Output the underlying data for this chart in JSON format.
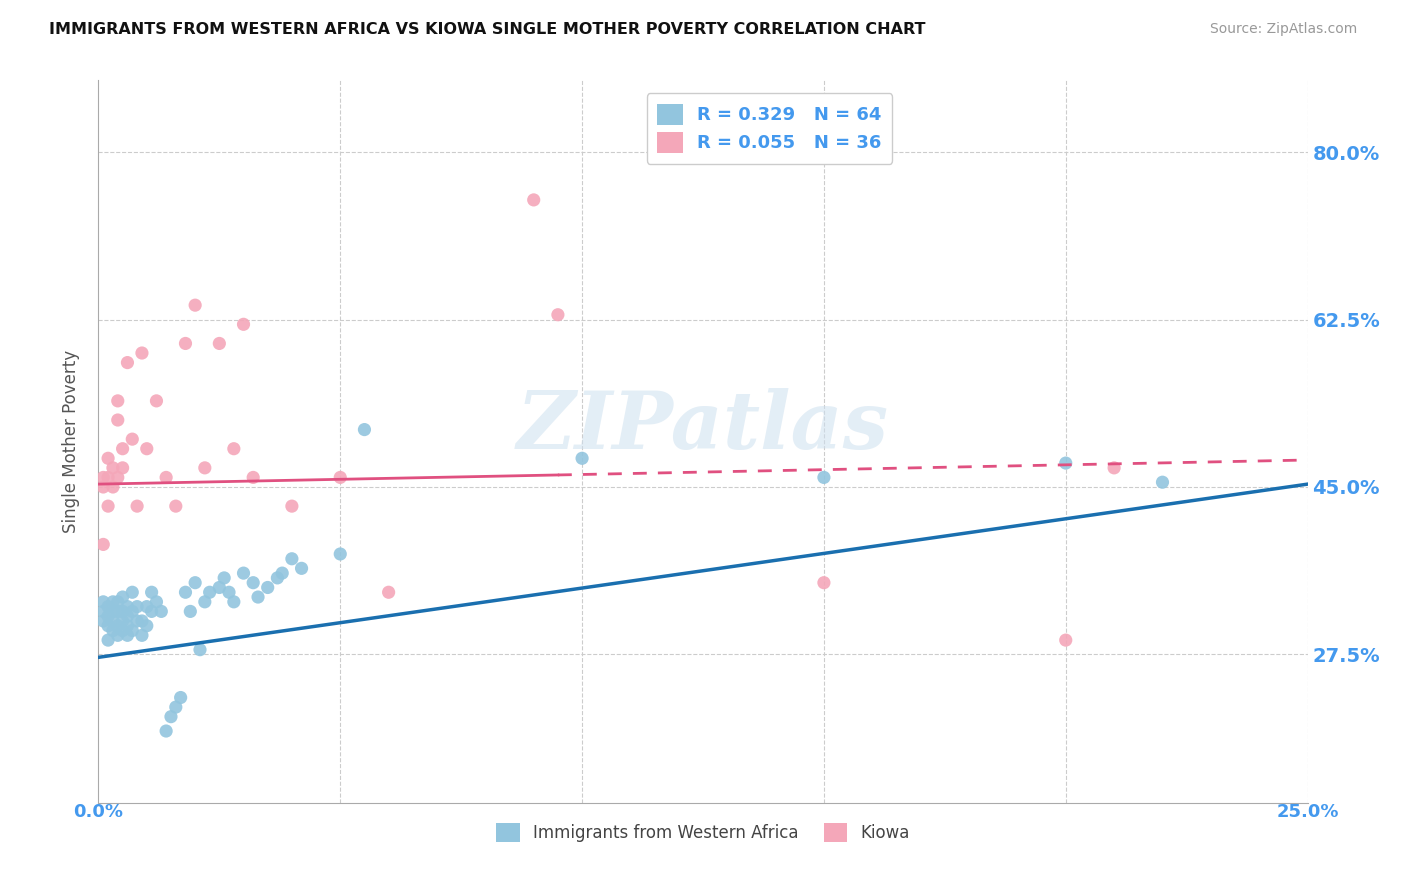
{
  "title": "IMMIGRANTS FROM WESTERN AFRICA VS KIOWA SINGLE MOTHER POVERTY CORRELATION CHART",
  "source": "Source: ZipAtlas.com",
  "ylabel": "Single Mother Poverty",
  "y_tick_labels": [
    "27.5%",
    "45.0%",
    "62.5%",
    "80.0%"
  ],
  "y_ticks": [
    0.275,
    0.45,
    0.625,
    0.8
  ],
  "x_range": [
    0.0,
    0.25
  ],
  "y_range": [
    0.12,
    0.875
  ],
  "legend_r1": "R = 0.329",
  "legend_n1": "N = 64",
  "legend_r2": "R = 0.055",
  "legend_n2": "N = 36",
  "color_blue": "#92C5DE",
  "color_pink": "#F4A7B9",
  "color_blue_line": "#1A6FAF",
  "color_pink_line": "#E05080",
  "color_label": "#4499EE",
  "watermark": "ZIPatlas",
  "blue_x": [
    0.001,
    0.001,
    0.001,
    0.002,
    0.002,
    0.002,
    0.002,
    0.003,
    0.003,
    0.003,
    0.003,
    0.004,
    0.004,
    0.004,
    0.004,
    0.005,
    0.005,
    0.005,
    0.005,
    0.006,
    0.006,
    0.006,
    0.006,
    0.007,
    0.007,
    0.007,
    0.008,
    0.008,
    0.009,
    0.009,
    0.01,
    0.01,
    0.011,
    0.011,
    0.012,
    0.013,
    0.014,
    0.015,
    0.016,
    0.017,
    0.018,
    0.019,
    0.02,
    0.021,
    0.022,
    0.023,
    0.025,
    0.026,
    0.027,
    0.028,
    0.03,
    0.032,
    0.033,
    0.035,
    0.037,
    0.038,
    0.04,
    0.042,
    0.05,
    0.055,
    0.1,
    0.15,
    0.2,
    0.22
  ],
  "blue_y": [
    0.31,
    0.32,
    0.33,
    0.29,
    0.305,
    0.315,
    0.325,
    0.3,
    0.31,
    0.32,
    0.33,
    0.295,
    0.305,
    0.32,
    0.33,
    0.3,
    0.31,
    0.32,
    0.335,
    0.295,
    0.305,
    0.315,
    0.325,
    0.3,
    0.32,
    0.34,
    0.31,
    0.325,
    0.295,
    0.31,
    0.305,
    0.325,
    0.32,
    0.34,
    0.33,
    0.32,
    0.195,
    0.21,
    0.22,
    0.23,
    0.34,
    0.32,
    0.35,
    0.28,
    0.33,
    0.34,
    0.345,
    0.355,
    0.34,
    0.33,
    0.36,
    0.35,
    0.335,
    0.345,
    0.355,
    0.36,
    0.375,
    0.365,
    0.38,
    0.51,
    0.48,
    0.46,
    0.475,
    0.455
  ],
  "pink_x": [
    0.001,
    0.001,
    0.001,
    0.002,
    0.002,
    0.002,
    0.003,
    0.003,
    0.004,
    0.004,
    0.004,
    0.005,
    0.005,
    0.006,
    0.007,
    0.008,
    0.009,
    0.01,
    0.012,
    0.014,
    0.016,
    0.018,
    0.02,
    0.022,
    0.025,
    0.028,
    0.03,
    0.032,
    0.04,
    0.05,
    0.06,
    0.09,
    0.095,
    0.15,
    0.2,
    0.21
  ],
  "pink_y": [
    0.45,
    0.46,
    0.39,
    0.43,
    0.46,
    0.48,
    0.45,
    0.47,
    0.52,
    0.54,
    0.46,
    0.47,
    0.49,
    0.58,
    0.5,
    0.43,
    0.59,
    0.49,
    0.54,
    0.46,
    0.43,
    0.6,
    0.64,
    0.47,
    0.6,
    0.49,
    0.62,
    0.46,
    0.43,
    0.46,
    0.34,
    0.75,
    0.63,
    0.35,
    0.29,
    0.47
  ],
  "blue_line_x0": 0.0,
  "blue_line_y0": 0.272,
  "blue_line_x1": 0.25,
  "blue_line_y1": 0.453,
  "pink_line_x0": 0.0,
  "pink_line_y0": 0.453,
  "pink_line_x1_solid": 0.095,
  "pink_line_x1_dash": 0.248,
  "pink_line_y1": 0.478
}
